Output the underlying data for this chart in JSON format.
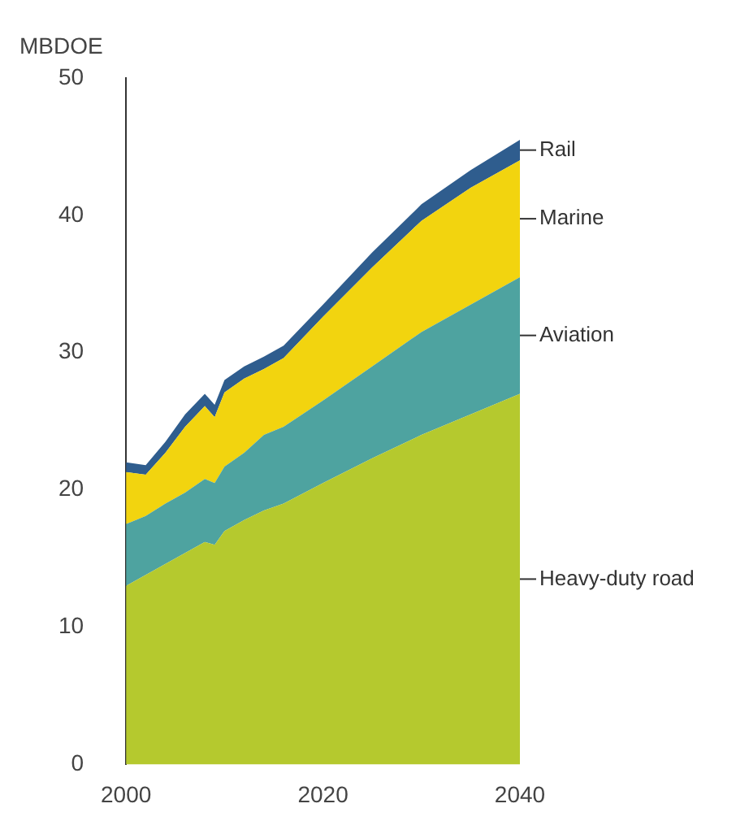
{
  "chart_data": {
    "type": "area",
    "stacked": true,
    "ylabel": "MBDOE",
    "x": [
      2000,
      2002,
      2004,
      2006,
      2008,
      2009,
      2010,
      2012,
      2014,
      2016,
      2020,
      2025,
      2030,
      2035,
      2040
    ],
    "xlim": [
      2000,
      2040
    ],
    "xticks": [
      2000,
      2020,
      2040
    ],
    "ylim": [
      0,
      50
    ],
    "yticks": [
      0,
      10,
      20,
      30,
      40,
      50
    ],
    "grid": false,
    "legend": false,
    "series": [
      {
        "name": "Heavy-duty road",
        "color": "#b5c92e",
        "values": [
          13,
          13.8,
          14.6,
          15.4,
          16.2,
          16.0,
          17.0,
          17.8,
          18.5,
          19.0,
          20.5,
          22.3,
          24.0,
          25.5,
          27.0
        ]
      },
      {
        "name": "Aviation",
        "color": "#4ea3a0",
        "values": [
          4.5,
          4.3,
          4.4,
          4.4,
          4.6,
          4.5,
          4.7,
          4.9,
          5.5,
          5.6,
          6.0,
          6.7,
          7.5,
          8.0,
          8.5
        ]
      },
      {
        "name": "Marine",
        "color": "#f2d40f",
        "values": [
          3.8,
          3.0,
          3.7,
          4.8,
          5.3,
          4.8,
          5.4,
          5.4,
          4.8,
          5.0,
          6.1,
          7.2,
          8.1,
          8.5,
          8.5
        ]
      },
      {
        "name": "Rail",
        "color": "#2f5d8e",
        "values": [
          0.7,
          0.7,
          0.8,
          0.9,
          0.9,
          0.9,
          0.9,
          0.9,
          0.9,
          0.9,
          0.9,
          1.1,
          1.2,
          1.3,
          1.5
        ]
      }
    ]
  }
}
